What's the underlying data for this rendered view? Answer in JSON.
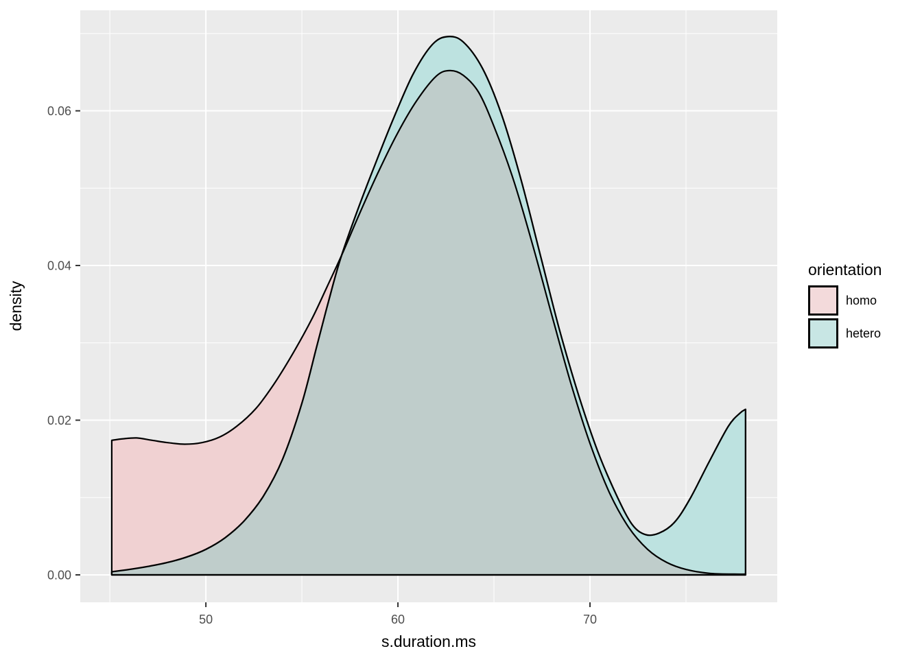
{
  "figure": {
    "background": "#FFFFFF",
    "panel_bg": "#EBEBEB",
    "grid_color": "#FFFFFF",
    "tick_mark_color": "#333333",
    "tick_label_color": "#4D4D4D",
    "axis_title_color": "#000000",
    "curve_stroke": "#000000"
  },
  "chart_data": {
    "type": "area",
    "subtype": "density",
    "title": "",
    "xlabel": "s.duration.ms",
    "ylabel": "density",
    "xlim": [
      43.46,
      79.75
    ],
    "ylim": [
      -0.00355,
      0.073
    ],
    "grid": true,
    "x_ticks": {
      "major": [
        {
          "value": 50,
          "label": "50"
        },
        {
          "value": 60,
          "label": "60"
        },
        {
          "value": 70,
          "label": "70"
        }
      ],
      "minor": [
        45,
        55,
        65,
        75
      ]
    },
    "y_ticks": {
      "major": [
        {
          "value": 0.0,
          "label": "0.00"
        },
        {
          "value": 0.02,
          "label": "0.02"
        },
        {
          "value": 0.04,
          "label": "0.04"
        },
        {
          "value": 0.06,
          "label": "0.06"
        }
      ],
      "minor": [
        0.01,
        0.03,
        0.05,
        0.07
      ]
    },
    "legend": {
      "title": "orientation",
      "position": "right",
      "entries": [
        {
          "label": "homo",
          "key_fill": "#F3DADB"
        },
        {
          "label": "hetero",
          "key_fill": "#C8E6E4"
        }
      ]
    },
    "overlap_fill": "#BFCDCB",
    "series": [
      {
        "name": "hetero",
        "fill": "#BDE2E0",
        "stroke": "#000000",
        "closed_left": true,
        "closed_right": true,
        "points": [
          [
            45.1,
            0.0004
          ],
          [
            46,
            0.0007
          ],
          [
            47,
            0.0011
          ],
          [
            48,
            0.0016
          ],
          [
            49,
            0.0023
          ],
          [
            50,
            0.0033
          ],
          [
            51,
            0.0048
          ],
          [
            52,
            0.007
          ],
          [
            53,
            0.0102
          ],
          [
            54,
            0.015
          ],
          [
            55,
            0.0222
          ],
          [
            55.8,
            0.0298
          ],
          [
            56.4,
            0.0355
          ],
          [
            57.0,
            0.0408
          ],
          [
            57.8,
            0.0465
          ],
          [
            58.8,
            0.053
          ],
          [
            59.8,
            0.0592
          ],
          [
            60.8,
            0.0648
          ],
          [
            61.8,
            0.0686
          ],
          [
            62.6,
            0.0696
          ],
          [
            63.4,
            0.0689
          ],
          [
            64.4,
            0.0655
          ],
          [
            65.4,
            0.0595
          ],
          [
            66.4,
            0.0512
          ],
          [
            67.4,
            0.0415
          ],
          [
            68.4,
            0.0318
          ],
          [
            69.4,
            0.0233
          ],
          [
            70.4,
            0.016
          ],
          [
            71.4,
            0.0102
          ],
          [
            72.2,
            0.0065
          ],
          [
            72.9,
            0.0052
          ],
          [
            73.6,
            0.0054
          ],
          [
            74.4,
            0.0068
          ],
          [
            75.2,
            0.0098
          ],
          [
            76.2,
            0.0146
          ],
          [
            77.2,
            0.0192
          ],
          [
            77.8,
            0.0209
          ],
          [
            78.1,
            0.0214
          ]
        ]
      },
      {
        "name": "homo",
        "fill": "#F0D1D2",
        "stroke": "#000000",
        "closed_left": true,
        "closed_right": false,
        "points": [
          [
            45.1,
            0.0174
          ],
          [
            45.7,
            0.0176
          ],
          [
            46.4,
            0.0177
          ],
          [
            47.2,
            0.0174
          ],
          [
            48.0,
            0.0171
          ],
          [
            48.9,
            0.0169
          ],
          [
            49.8,
            0.0171
          ],
          [
            50.7,
            0.0178
          ],
          [
            51.6,
            0.0192
          ],
          [
            52.6,
            0.0215
          ],
          [
            53.5,
            0.0245
          ],
          [
            54.5,
            0.0285
          ],
          [
            55.5,
            0.033
          ],
          [
            56.3,
            0.0372
          ],
          [
            57.1,
            0.0415
          ],
          [
            58.0,
            0.0467
          ],
          [
            59.0,
            0.0522
          ],
          [
            60.0,
            0.0572
          ],
          [
            61.0,
            0.0614
          ],
          [
            62.0,
            0.0645
          ],
          [
            62.7,
            0.0652
          ],
          [
            63.4,
            0.0646
          ],
          [
            64.2,
            0.0624
          ],
          [
            65.0,
            0.058
          ],
          [
            66.0,
            0.0512
          ],
          [
            67.0,
            0.0428
          ],
          [
            68.0,
            0.0337
          ],
          [
            69.0,
            0.0248
          ],
          [
            70.0,
            0.017
          ],
          [
            71.0,
            0.0107
          ],
          [
            72.0,
            0.0062
          ],
          [
            73.0,
            0.0033
          ],
          [
            74.0,
            0.0016
          ],
          [
            75.0,
            0.0007
          ],
          [
            76.2,
            0.0002
          ],
          [
            77.5,
            0.0001
          ],
          [
            78.1,
            0.0001
          ]
        ]
      }
    ]
  }
}
